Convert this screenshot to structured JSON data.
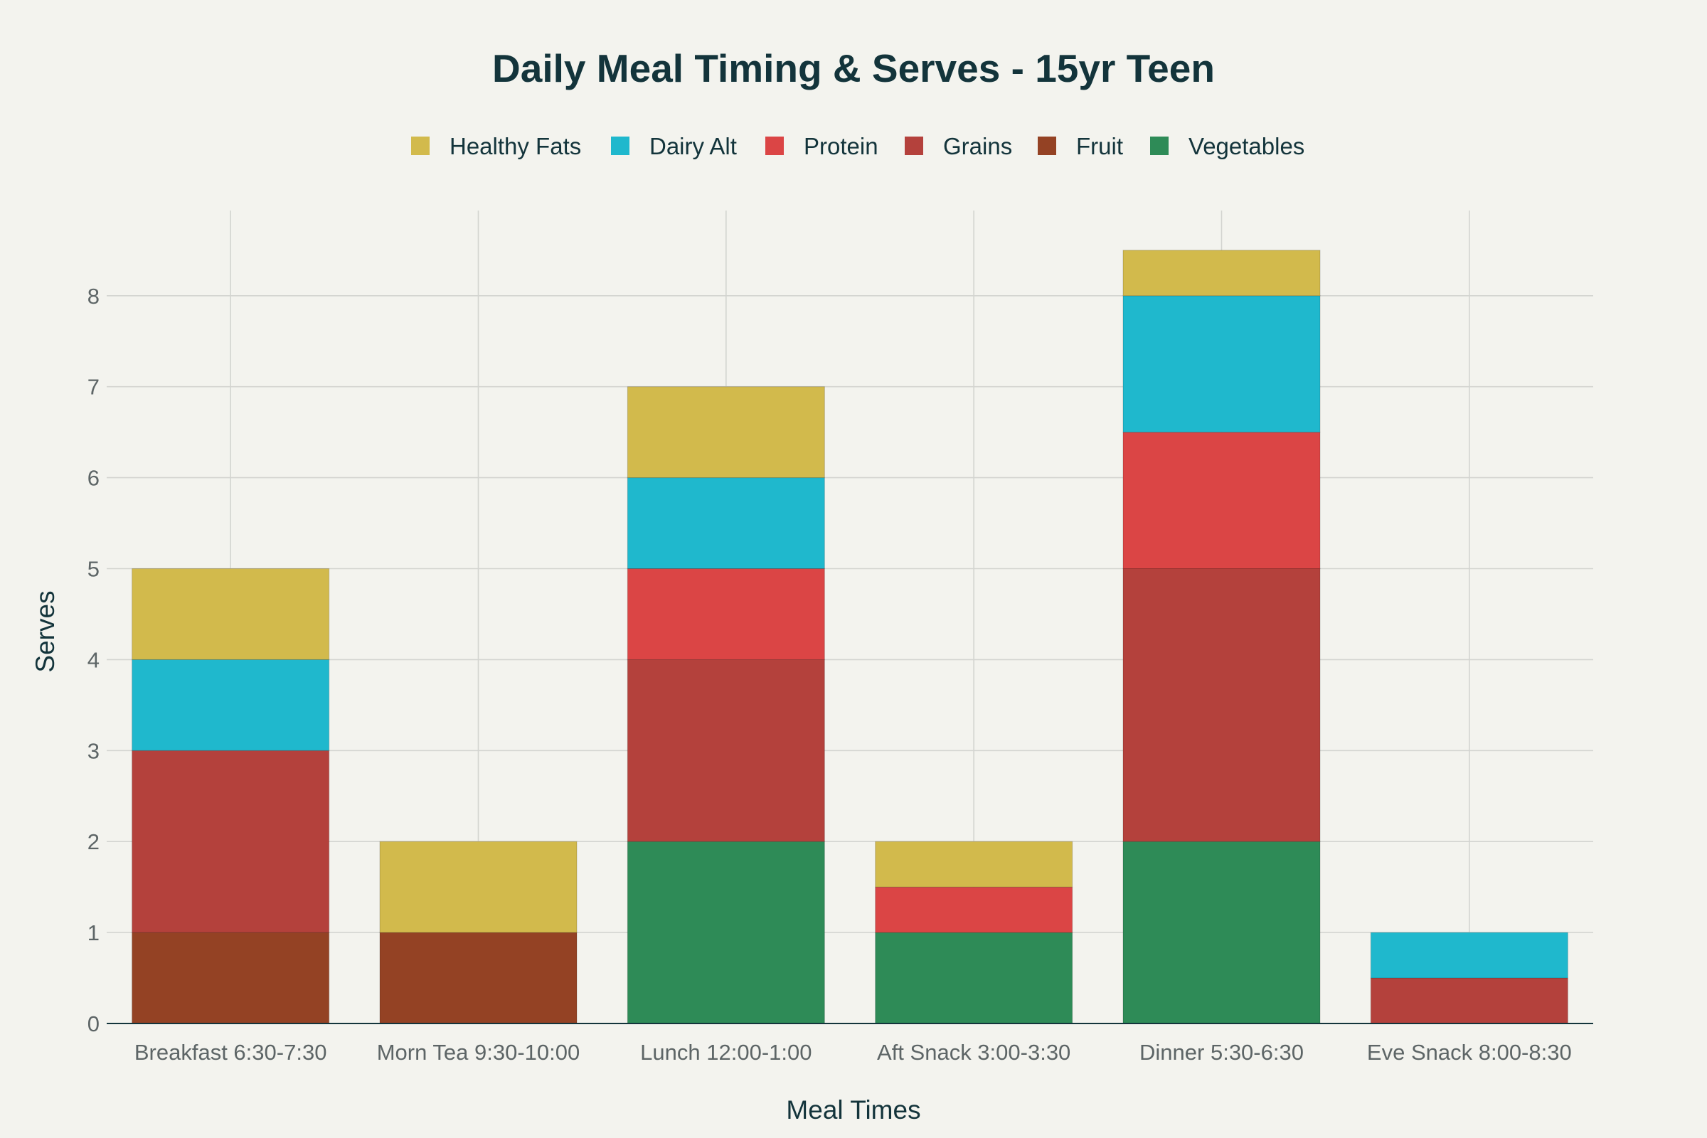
{
  "chart_data": {
    "type": "bar",
    "stacked": true,
    "title": "Daily Meal Timing & Serves - 15yr Teen",
    "xlabel": "Meal Times",
    "ylabel": "Serves",
    "ylim": [
      0,
      8.9
    ],
    "yticks": [
      0,
      1,
      2,
      3,
      4,
      5,
      6,
      7,
      8
    ],
    "grid": true,
    "legend_position": "top-center",
    "categories": [
      "Breakfast 6:30-7:30",
      "Morn Tea 9:30-10:00",
      "Lunch 12:00-1:00",
      "Aft Snack 3:00-3:30",
      "Dinner 5:30-6:30",
      "Eve Snack 8:00-8:30"
    ],
    "series": [
      {
        "name": "Vegetables",
        "color": "#2e8b57",
        "values": [
          0,
          0,
          2,
          1,
          2,
          0
        ]
      },
      {
        "name": "Fruit",
        "color": "#944224",
        "values": [
          1,
          1,
          0,
          0,
          0,
          0
        ]
      },
      {
        "name": "Grains",
        "color": "#b4413c",
        "values": [
          2,
          0,
          2,
          0,
          3,
          0.5
        ]
      },
      {
        "name": "Protein",
        "color": "#db4545",
        "values": [
          0,
          0,
          1,
          0.5,
          1.5,
          0
        ]
      },
      {
        "name": "Dairy Alt",
        "color": "#1fb8cd",
        "values": [
          1,
          0,
          1,
          0,
          1.5,
          0.5
        ]
      },
      {
        "name": "Healthy Fats",
        "color": "#d2ba4c",
        "values": [
          1,
          1,
          1,
          0.5,
          0.5,
          0
        ]
      }
    ],
    "legend_order": [
      "Healthy Fats",
      "Dairy Alt",
      "Protein",
      "Grains",
      "Fruit",
      "Vegetables"
    ]
  }
}
